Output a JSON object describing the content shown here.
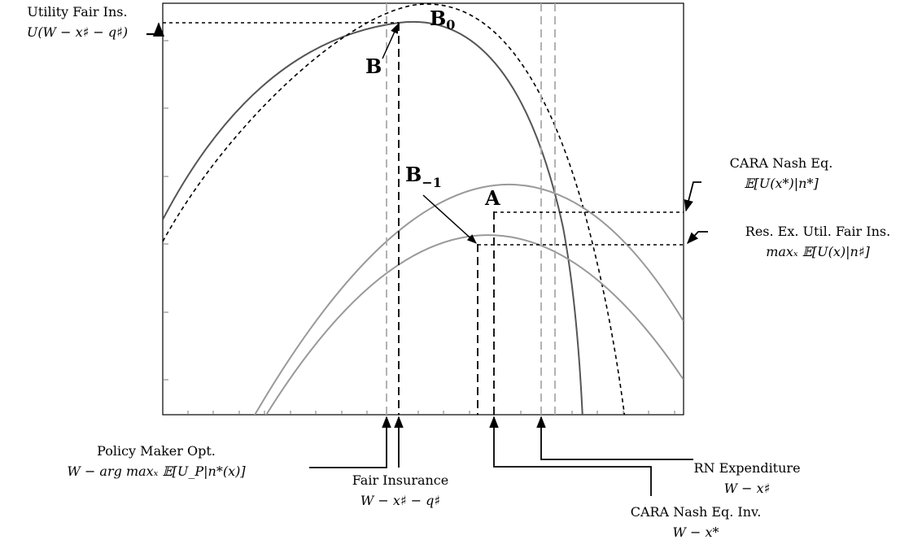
{
  "figure": {
    "frame_color": "#000000",
    "colors": {
      "main_curve": "#555555",
      "dotted_curve": "#000000",
      "lower_curves": "#999999",
      "guide_gray": "#aaaaaa",
      "guide_black": "#000000"
    }
  },
  "points": {
    "B0": "B",
    "B0_sub": "0",
    "B": "B",
    "Bm1": "B",
    "Bm1_sub": "−1",
    "A": "A"
  },
  "callouts": {
    "utility_fair_ins": {
      "line1": "Utility Fair Ins.",
      "line2": "U(W − x♯ − q♯)"
    },
    "cara_nash_eq": {
      "line1": "CARA Nash Eq.",
      "line2": "𝔼[U(x*)|n*]"
    },
    "res_ex_util": {
      "line1": "Res. Ex. Util. Fair Ins.",
      "line2": "maxₓ 𝔼[U(x)|n♯]"
    },
    "policy_maker": {
      "line1": "Policy Maker Opt.",
      "line2": "W − arg maxₓ 𝔼[U_P|n*(x)]"
    },
    "fair_insurance": {
      "line1": "Fair Insurance",
      "line2": "W − x♯ − q♯"
    },
    "rn_expenditure": {
      "line1": "RN Expenditure",
      "line2": "W − x♯"
    },
    "cara_nash_inv": {
      "line1": "CARA Nash Eq. Inv.",
      "line2": "W − x*"
    }
  }
}
